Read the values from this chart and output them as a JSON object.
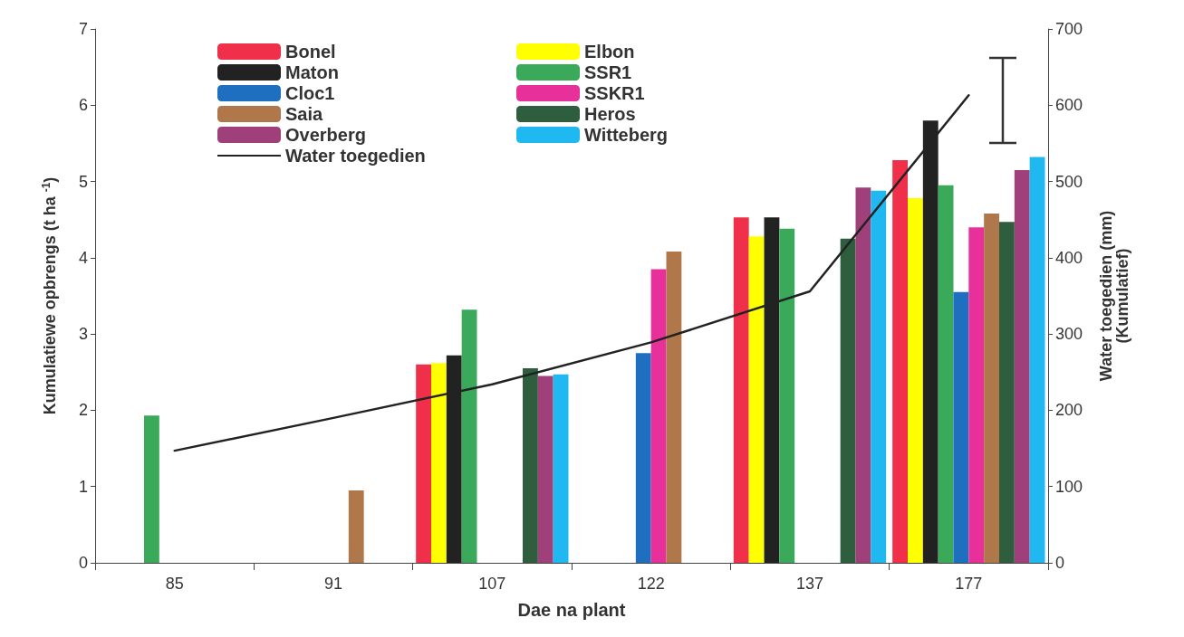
{
  "chart_data": {
    "type": "bar",
    "xlabel": "Dae na plant",
    "ylabel": "Kumulatiewe opbrengs (t ha $^{-1}$)",
    "y2label": "Water toegedien (mm)\n(Kumulatief)",
    "categories": [
      "85",
      "91",
      "107",
      "122",
      "137",
      "177"
    ],
    "ylim": [
      0,
      7
    ],
    "yticks": [
      0,
      1,
      2,
      3,
      4,
      5,
      6,
      7
    ],
    "y2lim": [
      0,
      700
    ],
    "y2ticks": [
      0,
      100,
      200,
      300,
      400,
      500,
      600,
      700
    ],
    "grid": false,
    "legend": "top left",
    "series": [
      {
        "name": "Bonel",
        "color": "#f0304a",
        "values": [
          null,
          null,
          2.6,
          null,
          4.53,
          5.28
        ]
      },
      {
        "name": "Elbon",
        "color": "#ffff00",
        "values": [
          null,
          null,
          2.62,
          null,
          4.28,
          4.78
        ]
      },
      {
        "name": "Maton",
        "color": "#222222",
        "values": [
          null,
          null,
          2.72,
          null,
          4.53,
          5.8
        ]
      },
      {
        "name": "SSR1",
        "color": "#3aaa5a",
        "values": [
          1.93,
          null,
          3.32,
          null,
          4.38,
          4.95
        ]
      },
      {
        "name": "Cloc1",
        "color": "#1f6fc0",
        "values": [
          null,
          null,
          null,
          2.75,
          null,
          3.55
        ]
      },
      {
        "name": "SSKR1",
        "color": "#e8309a",
        "values": [
          null,
          null,
          null,
          3.85,
          null,
          4.4
        ]
      },
      {
        "name": "Saia",
        "color": "#b0784a",
        "values": [
          null,
          0.95,
          null,
          4.08,
          null,
          4.58
        ]
      },
      {
        "name": "Heros",
        "color": "#2e5e3e",
        "values": [
          null,
          null,
          2.55,
          null,
          4.25,
          4.47
        ]
      },
      {
        "name": "Overberg",
        "color": "#a0407a",
        "values": [
          null,
          null,
          2.45,
          null,
          4.92,
          5.15
        ]
      },
      {
        "name": "Witteberg",
        "color": "#20b8f0",
        "values": [
          null,
          null,
          2.47,
          null,
          4.88,
          5.32
        ]
      },
      {
        "name": "Water toegedien",
        "type": "line",
        "axis": "y2",
        "color": "#222222",
        "marker": "none",
        "line_style": "solid",
        "values": [
          147,
          190,
          234,
          289,
          356,
          613
        ]
      }
    ]
  }
}
